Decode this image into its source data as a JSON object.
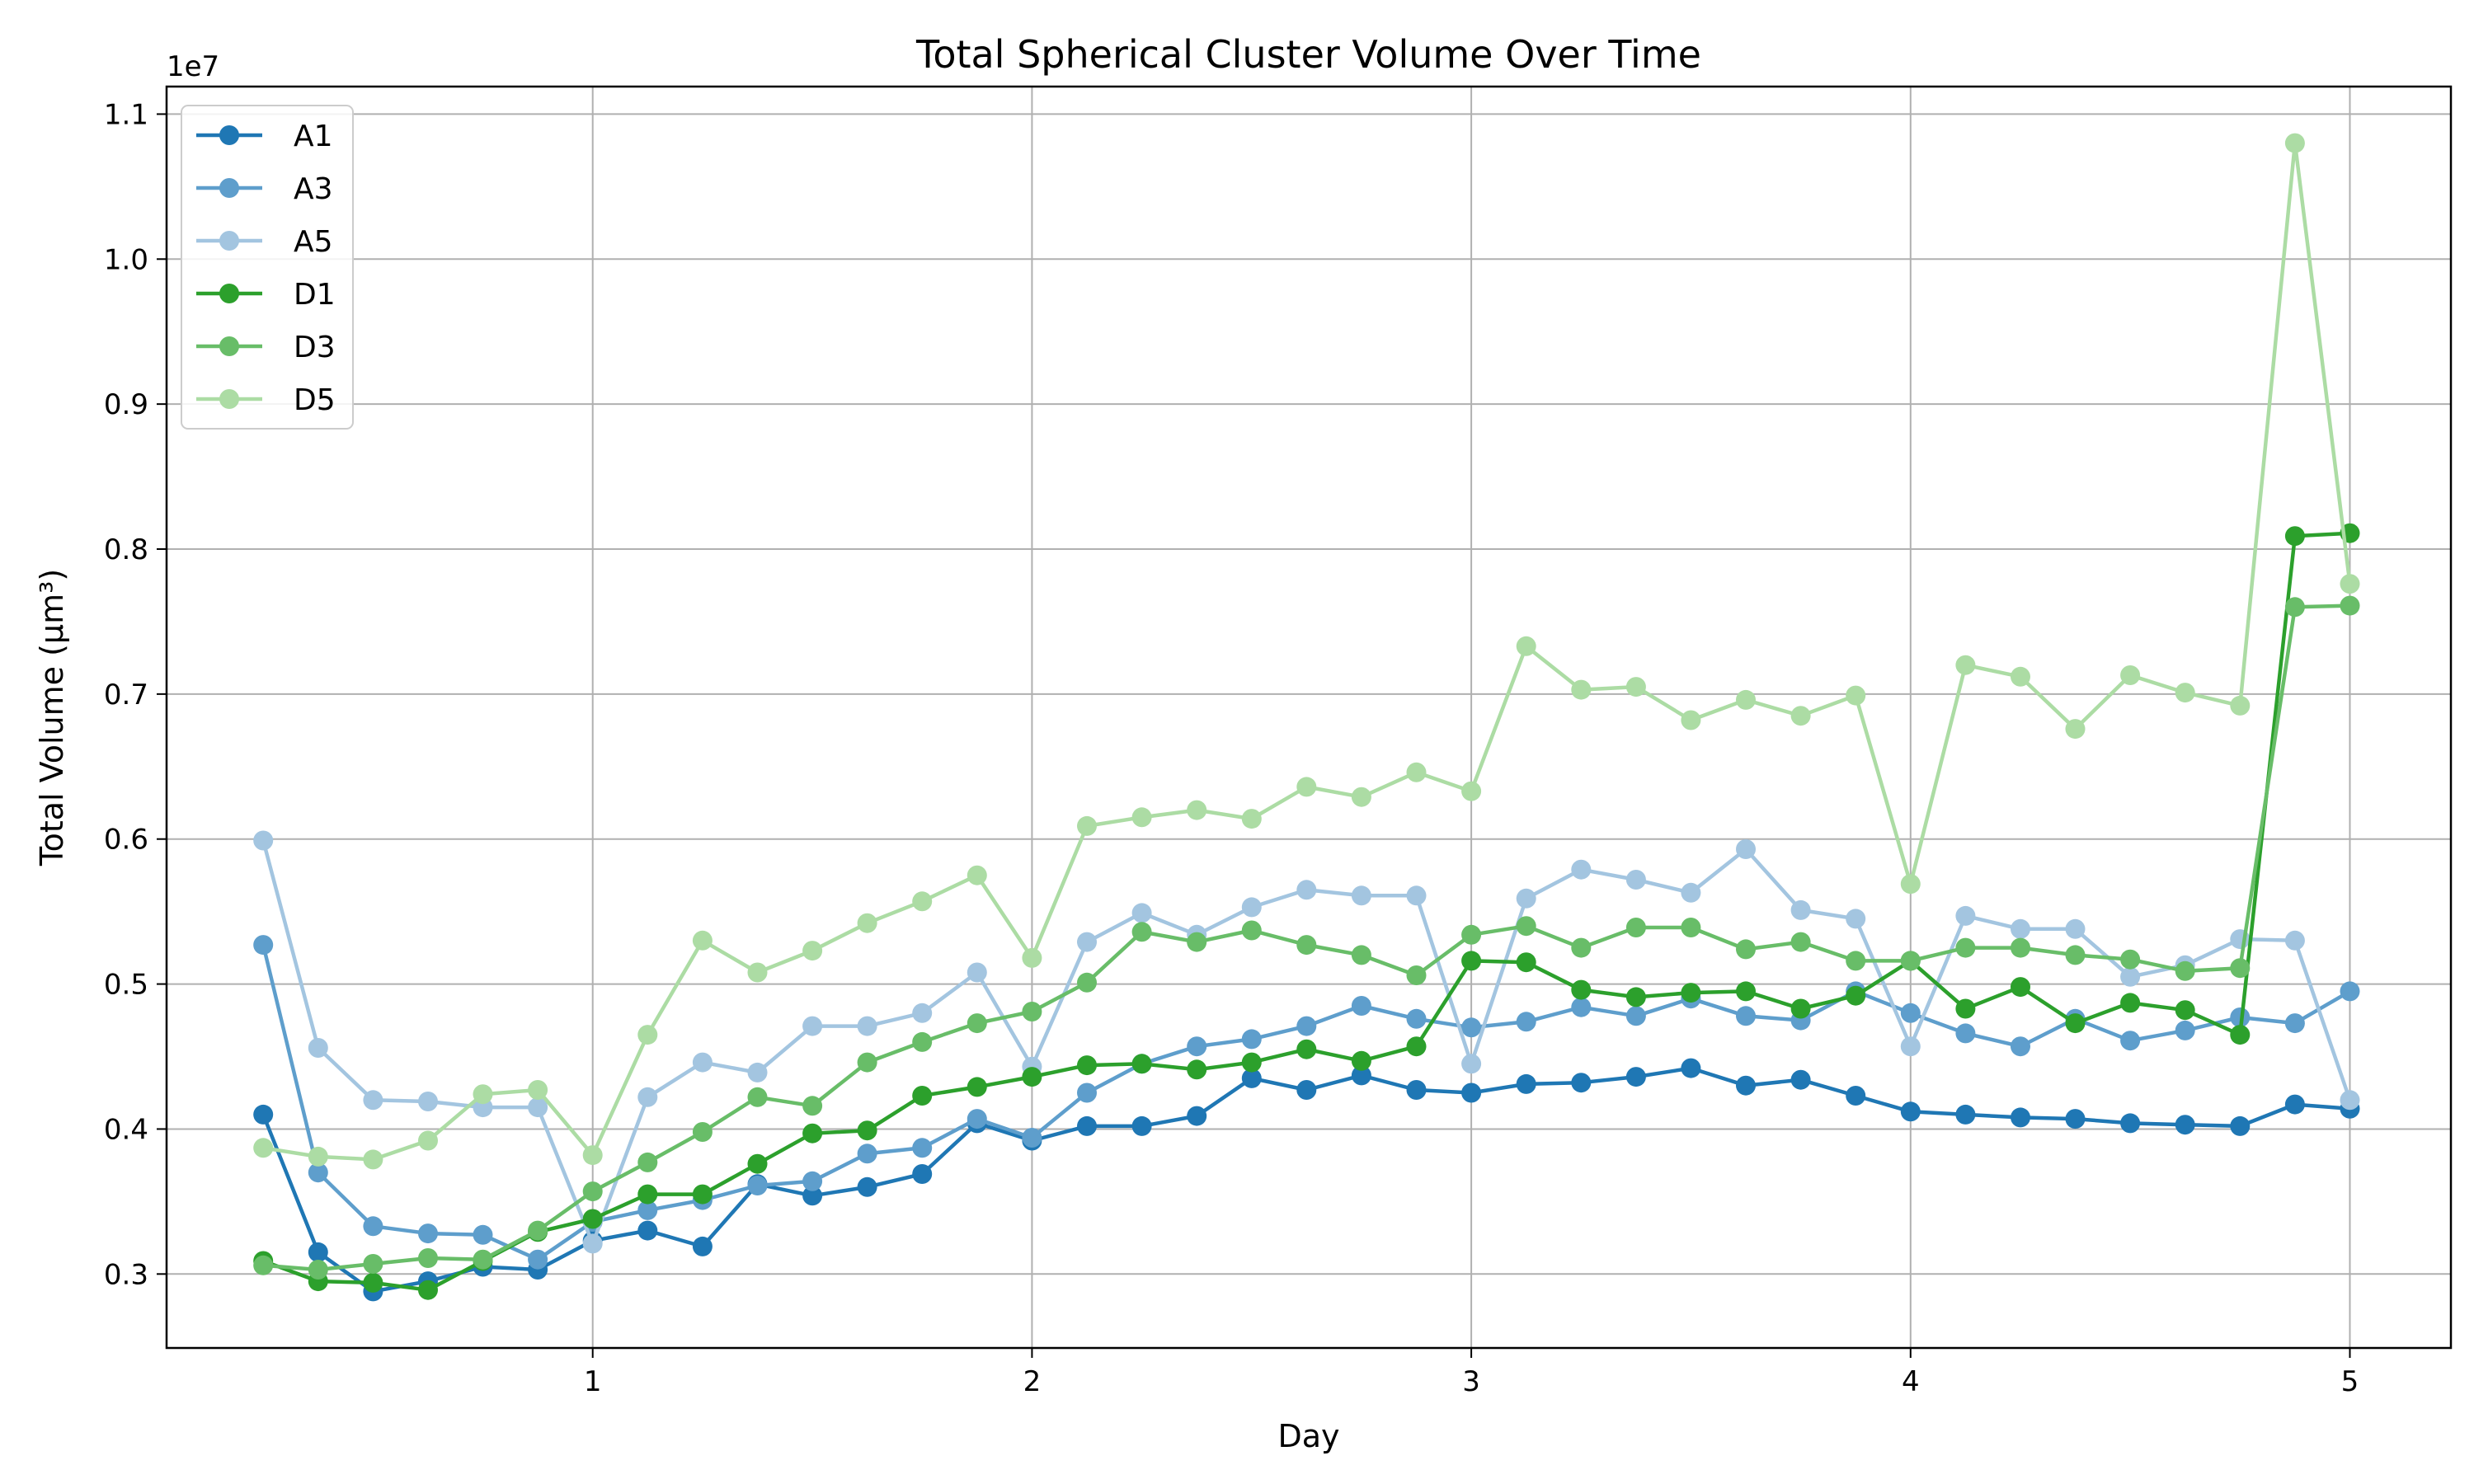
{
  "chart_data": {
    "type": "line",
    "title": "Total Spherical Cluster Volume Over Time",
    "xlabel": "Day",
    "ylabel": "Total Volume (µm³)",
    "y_offset_label": "1e7",
    "y_scale": 10000000,
    "xlim": [
      0.03,
      5.23
    ],
    "ylim": [
      2490000,
      11190000
    ],
    "x_ticks": [
      1,
      2,
      3,
      4,
      5
    ],
    "y_ticks": [
      0.3,
      0.4,
      0.5,
      0.6,
      0.7,
      0.8,
      0.9,
      1.0,
      1.1
    ],
    "y_tick_labels": [
      "0.3",
      "0.4",
      "0.5",
      "0.6",
      "0.7",
      "0.8",
      "0.9",
      "1.0",
      "1.1"
    ],
    "grid": true,
    "legend_position": "top-left",
    "x": [
      0.25,
      0.375,
      0.5,
      0.625,
      0.75,
      0.875,
      1.0,
      1.125,
      1.25,
      1.375,
      1.5,
      1.625,
      1.75,
      1.875,
      2.0,
      2.125,
      2.25,
      2.375,
      2.5,
      2.625,
      2.75,
      2.875,
      3.0,
      3.125,
      3.25,
      3.375,
      3.5,
      3.625,
      3.75,
      3.875,
      4.0,
      4.125,
      4.25,
      4.375,
      4.5,
      4.625,
      4.75,
      4.875,
      5.0
    ],
    "series": [
      {
        "name": "A1",
        "color": "#1f77b4",
        "values": [
          4100000,
          3150000,
          2880000,
          2950000,
          3050000,
          3030000,
          3230000,
          3300000,
          3190000,
          3620000,
          3540000,
          3600000,
          3690000,
          4040000,
          3920000,
          4020000,
          4020000,
          4090000,
          4350000,
          4270000,
          4370000,
          4270000,
          4250000,
          4310000,
          4320000,
          4360000,
          4420000,
          4300000,
          4340000,
          4230000,
          4120000,
          4100000,
          4080000,
          4070000,
          4040000,
          4030000,
          4020000,
          4170000,
          4140000
        ]
      },
      {
        "name": "A3",
        "color": "#5e9ecc",
        "values": [
          5270000,
          3700000,
          3330000,
          3280000,
          3270000,
          3100000,
          3360000,
          3440000,
          3510000,
          3610000,
          3640000,
          3830000,
          3870000,
          4070000,
          3940000,
          4250000,
          4450000,
          4570000,
          4620000,
          4710000,
          4850000,
          4760000,
          4700000,
          4740000,
          4840000,
          4780000,
          4900000,
          4780000,
          4750000,
          4950000,
          4800000,
          4660000,
          4570000,
          4760000,
          4610000,
          4680000,
          4770000,
          4730000,
          4950000
        ]
      },
      {
        "name": "A5",
        "color": "#a3c5e0",
        "values": [
          5990000,
          4560000,
          4200000,
          4190000,
          4150000,
          4150000,
          3210000,
          4220000,
          4460000,
          4390000,
          4710000,
          4710000,
          4800000,
          5080000,
          4430000,
          5290000,
          5490000,
          5340000,
          5530000,
          5650000,
          5610000,
          5610000,
          4450000,
          5590000,
          5790000,
          5720000,
          5630000,
          5930000,
          5510000,
          5450000,
          4570000,
          5470000,
          5380000,
          5380000,
          5050000,
          5130000,
          5310000,
          5300000,
          4200000
        ]
      },
      {
        "name": "D1",
        "color": "#2ca02c",
        "values": [
          3090000,
          2950000,
          2940000,
          2890000,
          3090000,
          3290000,
          3380000,
          3550000,
          3550000,
          3760000,
          3970000,
          3990000,
          4230000,
          4290000,
          4360000,
          4440000,
          4450000,
          4410000,
          4460000,
          4550000,
          4470000,
          4570000,
          5160000,
          5150000,
          4960000,
          4910000,
          4940000,
          4950000,
          4830000,
          4920000,
          5160000,
          4830000,
          4980000,
          4730000,
          4870000,
          4820000,
          4650000,
          8090000,
          8110000
        ]
      },
      {
        "name": "D3",
        "color": "#68bd68",
        "values": [
          3060000,
          3030000,
          3070000,
          3110000,
          3100000,
          3300000,
          3570000,
          3770000,
          3980000,
          4220000,
          4160000,
          4460000,
          4600000,
          4730000,
          4810000,
          5010000,
          5360000,
          5290000,
          5370000,
          5270000,
          5200000,
          5060000,
          5340000,
          5400000,
          5250000,
          5390000,
          5390000,
          5240000,
          5290000,
          5160000,
          5160000,
          5250000,
          5250000,
          5200000,
          5170000,
          5090000,
          5110000,
          7600000,
          7610000
        ]
      },
      {
        "name": "D5",
        "color": "#acdca4",
        "values": [
          3870000,
          3810000,
          3790000,
          3920000,
          4240000,
          4270000,
          3820000,
          4650000,
          5300000,
          5080000,
          5230000,
          5420000,
          5570000,
          5750000,
          5180000,
          6090000,
          6150000,
          6200000,
          6140000,
          6360000,
          6290000,
          6460000,
          6330000,
          7330000,
          7030000,
          7050000,
          6820000,
          6960000,
          6850000,
          6990000,
          5690000,
          7200000,
          7120000,
          6760000,
          7130000,
          7010000,
          6920000,
          10800000,
          7760000
        ]
      }
    ]
  }
}
